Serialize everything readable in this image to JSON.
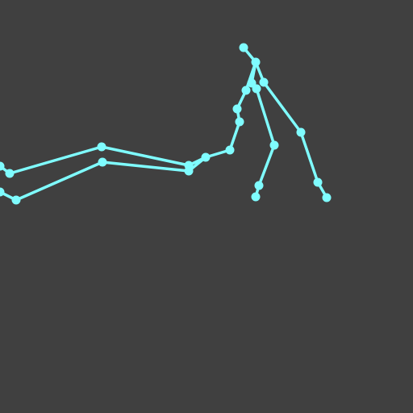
{
  "scene": {
    "background_color": "#404040",
    "skeleton_color": "#7ffcff",
    "description_free_note": ""
  }
}
